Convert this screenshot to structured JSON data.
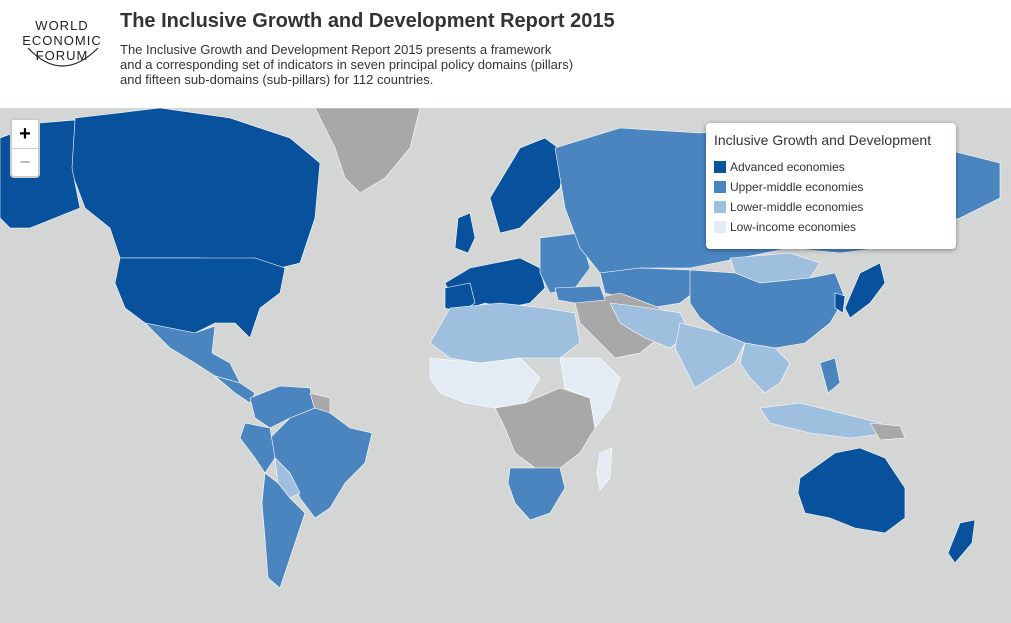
{
  "header": {
    "logo_lines": [
      "WORLD",
      "ECONOMIC",
      "FORUM"
    ],
    "title": "The Inclusive Growth and Development Report 2015",
    "description_lines": [
      "The Inclusive Growth and Development Report 2015 presents a framework",
      "and a corresponding set of indicators in seven principal policy domains (pillars)",
      "and fifteen sub-domains (sub-pillars) for 112 countries."
    ]
  },
  "zoom": {
    "in_label": "+",
    "out_label": "−"
  },
  "legend": {
    "title": "Inclusive Growth and Development",
    "items": [
      {
        "label": "Advanced economies",
        "color": "#08519c"
      },
      {
        "label": "Upper-middle economies",
        "color": "#4a85c0"
      },
      {
        "label": "Lower-middle economies",
        "color": "#9fbfdf"
      },
      {
        "label": "Low-income economies",
        "color": "#e3ecf5"
      }
    ]
  },
  "map_colors": {
    "ocean": "#d4d6d6",
    "no_data": "#a8a8a8",
    "advanced": "#08519c",
    "upper_middle": "#4a85c0",
    "lower_middle": "#9fbfdf",
    "low_income": "#e3ecf5"
  }
}
